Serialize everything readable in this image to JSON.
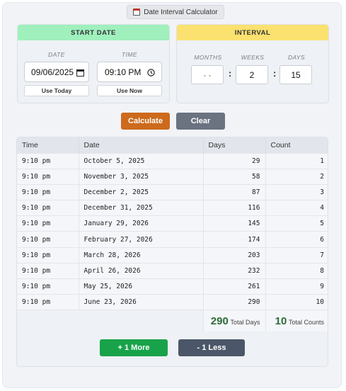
{
  "title": "Date Interval Calculator",
  "start_panel": {
    "header": "START DATE",
    "date_label": "DATE",
    "time_label": "TIME",
    "date_value": "09/06/2025",
    "time_value": "09:10 PM",
    "use_today_label": "Use Today",
    "use_now_label": "Use Now"
  },
  "interval_panel": {
    "header": "INTERVAL",
    "months_label": "MONTHS",
    "weeks_label": "WEEKS",
    "days_label": "DAYS",
    "months_value": "- -",
    "weeks_value": "2",
    "days_value": "15",
    "separator": ":"
  },
  "actions": {
    "calculate_label": "Calculate",
    "clear_label": "Clear"
  },
  "table": {
    "headers": [
      "Time",
      "Date",
      "Days",
      "Count"
    ],
    "rows": [
      [
        "9:10 pm",
        "October 5, 2025",
        "29",
        "1"
      ],
      [
        "9:10 pm",
        "November 3, 2025",
        "58",
        "2"
      ],
      [
        "9:10 pm",
        "December 2, 2025",
        "87",
        "3"
      ],
      [
        "9:10 pm",
        "December 31, 2025",
        "116",
        "4"
      ],
      [
        "9:10 pm",
        "January 29, 2026",
        "145",
        "5"
      ],
      [
        "9:10 pm",
        "February 27, 2026",
        "174",
        "6"
      ],
      [
        "9:10 pm",
        "March 28, 2026",
        "203",
        "7"
      ],
      [
        "9:10 pm",
        "April 26, 2026",
        "232",
        "8"
      ],
      [
        "9:10 pm",
        "May 25, 2026",
        "261",
        "9"
      ],
      [
        "9:10 pm",
        "June 23, 2026",
        "290",
        "10"
      ]
    ],
    "total_days": "290",
    "total_days_label": "Total Days",
    "total_counts": "10",
    "total_counts_label": "Total Counts"
  },
  "footer": {
    "more_label": "+ 1 More",
    "less_label": "- 1 Less"
  },
  "colors": {
    "start_header": "#9ff0bd",
    "interval_header": "#fbe16f",
    "calculate": "#cd6a1c",
    "clear": "#6b7280",
    "more": "#18a34a",
    "less": "#4b5768"
  }
}
